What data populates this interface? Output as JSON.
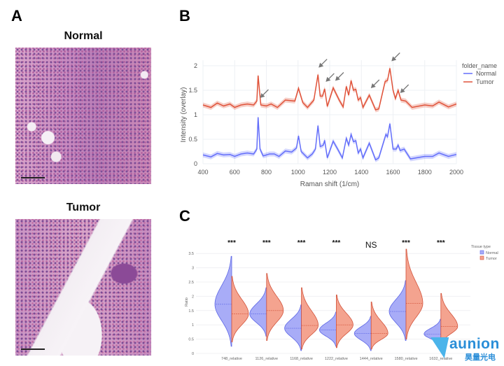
{
  "panels": {
    "a": {
      "label": "A",
      "normal_title": "Normal",
      "tumor_title": "Tumor"
    },
    "b": {
      "label": "B"
    },
    "c": {
      "label": "C"
    }
  },
  "watermark": {
    "brand": "aunion",
    "brand_cn": "昊量光电"
  },
  "chart_data": [
    {
      "type": "line",
      "xlabel": "Raman shift (1/cm)",
      "ylabel": "Intensity (overlay)",
      "xlim": [
        400,
        2000
      ],
      "ylim": [
        0,
        2.1
      ],
      "xticks": [
        400,
        600,
        800,
        1000,
        1200,
        1400,
        1600,
        1800,
        2000
      ],
      "yticks": [
        0,
        0.5,
        1,
        1.5,
        2
      ],
      "grid": true,
      "legend_title": "folder_name",
      "legend_position": "right",
      "colors": {
        "Normal": "#636efa",
        "Tumor": "#e0533a"
      },
      "arrow_annotations_x": [
        760,
        1130,
        1175,
        1235,
        1460,
        1590,
        1645
      ],
      "series": [
        {
          "name": "Normal",
          "points": [
            [
              400,
              0.18
            ],
            [
              450,
              0.14
            ],
            [
              490,
              0.21
            ],
            [
              530,
              0.18
            ],
            [
              570,
              0.19
            ],
            [
              600,
              0.15
            ],
            [
              640,
              0.2
            ],
            [
              680,
              0.22
            ],
            [
              720,
              0.2
            ],
            [
              740,
              0.3
            ],
            [
              748,
              0.95
            ],
            [
              760,
              0.3
            ],
            [
              780,
              0.16
            ],
            [
              820,
              0.2
            ],
            [
              850,
              0.2
            ],
            [
              880,
              0.15
            ],
            [
              920,
              0.26
            ],
            [
              960,
              0.24
            ],
            [
              990,
              0.32
            ],
            [
              1003,
              0.57
            ],
            [
              1020,
              0.25
            ],
            [
              1060,
              0.12
            ],
            [
              1090,
              0.2
            ],
            [
              1110,
              0.3
            ],
            [
              1126,
              0.78
            ],
            [
              1140,
              0.35
            ],
            [
              1160,
              0.38
            ],
            [
              1168,
              0.48
            ],
            [
              1185,
              0.12
            ],
            [
              1222,
              0.46
            ],
            [
              1250,
              0.3
            ],
            [
              1280,
              0.12
            ],
            [
              1305,
              0.52
            ],
            [
              1320,
              0.38
            ],
            [
              1335,
              0.6
            ],
            [
              1350,
              0.45
            ],
            [
              1365,
              0.47
            ],
            [
              1380,
              0.22
            ],
            [
              1395,
              0.3
            ],
            [
              1410,
              0.12
            ],
            [
              1450,
              0.42
            ],
            [
              1490,
              0.08
            ],
            [
              1510,
              0.12
            ],
            [
              1555,
              0.6
            ],
            [
              1565,
              0.55
            ],
            [
              1580,
              0.82
            ],
            [
              1600,
              0.3
            ],
            [
              1620,
              0.3
            ],
            [
              1632,
              0.38
            ],
            [
              1645,
              0.27
            ],
            [
              1670,
              0.3
            ],
            [
              1710,
              0.1
            ],
            [
              1800,
              0.15
            ],
            [
              1850,
              0.15
            ],
            [
              1890,
              0.22
            ],
            [
              1950,
              0.15
            ],
            [
              2000,
              0.19
            ]
          ]
        },
        {
          "name": "Tumor",
          "points": [
            [
              400,
              1.2
            ],
            [
              450,
              1.15
            ],
            [
              490,
              1.24
            ],
            [
              530,
              1.18
            ],
            [
              570,
              1.22
            ],
            [
              600,
              1.15
            ],
            [
              640,
              1.2
            ],
            [
              680,
              1.22
            ],
            [
              720,
              1.2
            ],
            [
              740,
              1.28
            ],
            [
              748,
              1.8
            ],
            [
              765,
              1.2
            ],
            [
              800,
              1.18
            ],
            [
              830,
              1.22
            ],
            [
              870,
              1.15
            ],
            [
              920,
              1.3
            ],
            [
              980,
              1.28
            ],
            [
              1003,
              1.54
            ],
            [
              1030,
              1.25
            ],
            [
              1060,
              1.15
            ],
            [
              1100,
              1.3
            ],
            [
              1126,
              1.82
            ],
            [
              1140,
              1.38
            ],
            [
              1155,
              1.38
            ],
            [
              1168,
              1.53
            ],
            [
              1185,
              1.17
            ],
            [
              1222,
              1.55
            ],
            [
              1260,
              1.3
            ],
            [
              1285,
              1.16
            ],
            [
              1305,
              1.58
            ],
            [
              1320,
              1.4
            ],
            [
              1335,
              1.7
            ],
            [
              1350,
              1.5
            ],
            [
              1365,
              1.52
            ],
            [
              1380,
              1.3
            ],
            [
              1395,
              1.35
            ],
            [
              1410,
              1.15
            ],
            [
              1450,
              1.4
            ],
            [
              1490,
              1.1
            ],
            [
              1510,
              1.12
            ],
            [
              1550,
              1.68
            ],
            [
              1565,
              1.7
            ],
            [
              1580,
              1.95
            ],
            [
              1600,
              1.5
            ],
            [
              1615,
              1.33
            ],
            [
              1632,
              1.5
            ],
            [
              1650,
              1.3
            ],
            [
              1680,
              1.28
            ],
            [
              1720,
              1.15
            ],
            [
              1800,
              1.2
            ],
            [
              1850,
              1.18
            ],
            [
              1890,
              1.26
            ],
            [
              1950,
              1.16
            ],
            [
              2000,
              1.22
            ]
          ]
        }
      ]
    },
    {
      "type": "violin",
      "ylabel": "Ratio",
      "ylim": [
        0,
        3.7
      ],
      "yticks": [
        0,
        0.5,
        1,
        1.5,
        2,
        2.5,
        3,
        3.5
      ],
      "grid": true,
      "legend_title": "Tissue type",
      "legend_position": "top-right",
      "colors": {
        "Normal": "#636efa",
        "Tumor": "#ef553b"
      },
      "categories": [
        "748_relative",
        "1126_relative",
        "1168_relative",
        "1222_relative",
        "1444_relative",
        "1580_relative",
        "1632_relative"
      ],
      "significance": [
        "***",
        "***",
        "***",
        "***",
        "NS",
        "***",
        "***"
      ],
      "series": [
        {
          "name": "Normal",
          "median": [
            1.72,
            1.38,
            0.88,
            0.82,
            0.7,
            1.47,
            0.68
          ],
          "min": [
            0.25,
            0.6,
            0.1,
            0.25,
            0.1,
            0.45,
            0.25
          ],
          "max": [
            3.4,
            2.3,
            1.7,
            1.45,
            1.3,
            2.55,
            1.2
          ]
        },
        {
          "name": "Tumor",
          "median": [
            1.38,
            1.5,
            0.98,
            1.0,
            0.7,
            1.75,
            0.94
          ],
          "min": [
            0.4,
            0.45,
            0.15,
            0.2,
            0.15,
            0.5,
            0.3
          ],
          "max": [
            2.7,
            2.8,
            2.3,
            2.05,
            1.8,
            3.65,
            2.1
          ]
        }
      ]
    }
  ]
}
